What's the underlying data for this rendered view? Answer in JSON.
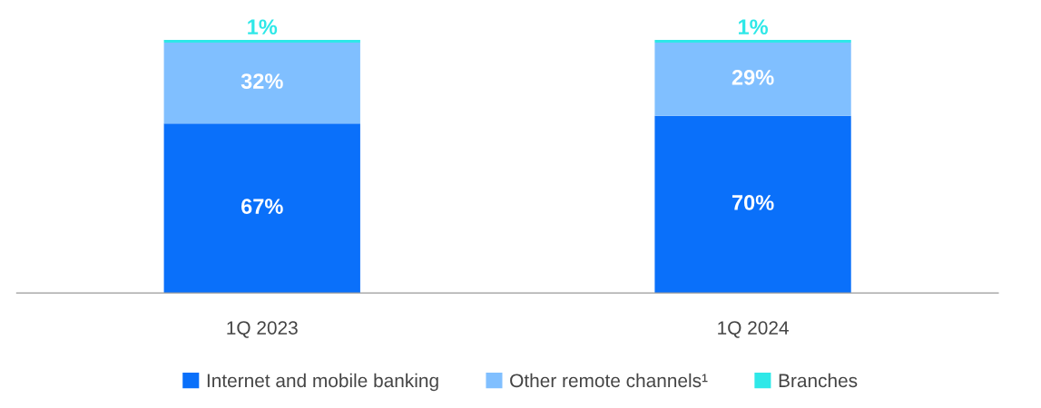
{
  "chart_data": {
    "type": "bar",
    "stacked": true,
    "categories": [
      "1Q 2023",
      "1Q 2024"
    ],
    "series": [
      {
        "name": "Internet and mobile banking",
        "color": "#0a70fa",
        "values": [
          67,
          70
        ],
        "value_labels": [
          "67%",
          "70%"
        ]
      },
      {
        "name": "Other remote channels¹",
        "color": "#80bfff",
        "values": [
          32,
          29
        ],
        "value_labels": [
          "32%",
          "29%"
        ]
      },
      {
        "name": "Branches",
        "color": "#2ee8e8",
        "values": [
          1,
          1
        ],
        "value_labels": [
          "1%",
          "1%"
        ]
      }
    ],
    "legend": "bottom",
    "grid": false
  }
}
